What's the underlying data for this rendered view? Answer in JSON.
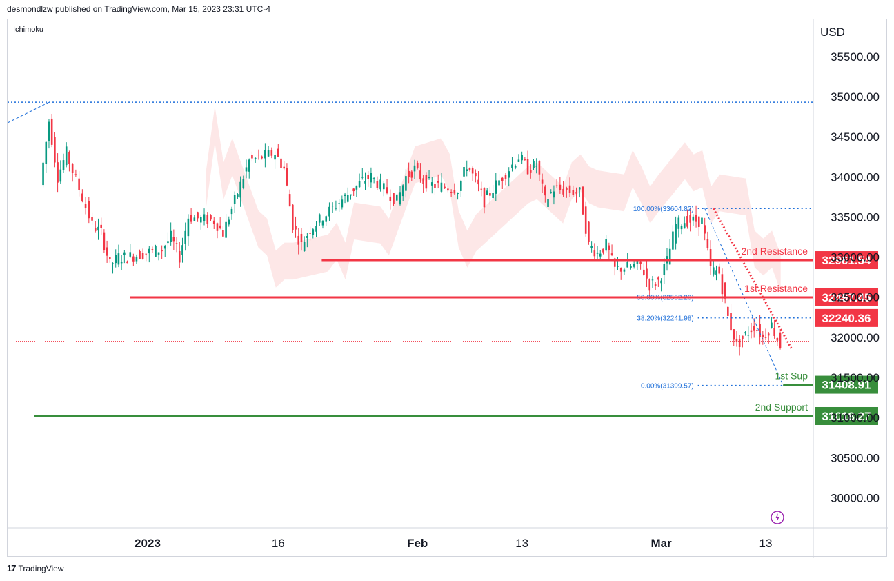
{
  "header": {
    "published": "desmondlzw published on TradingView.com, Mar 15, 2023 23:31 UTC-4"
  },
  "footer": {
    "brand": "TradingView",
    "logo_mark": "17"
  },
  "colors": {
    "up": "#089981",
    "down": "#f23645",
    "cloud_bear": "#fde3e3",
    "cloud_bull": "#e0f2e6",
    "resistance": "#f23645",
    "support": "#388e3c",
    "fib": "#1e6fd9",
    "last_price": "#f23645"
  },
  "chart_data": {
    "type": "candlestick",
    "indicator": "Ichimoku",
    "currency": "USD",
    "y_ticks": [
      30000,
      30500,
      31000,
      31500,
      32000,
      32500,
      33000,
      33500,
      34000,
      34500,
      35000,
      35500
    ],
    "y_tick_labels": [
      "30000.00",
      "30500.00",
      "31000.00",
      "31500.00",
      "32000.00",
      "32500.00",
      "33000.00",
      "33500.00",
      "34000.00",
      "34500.00",
      "35000.00",
      "35500.00"
    ],
    "ylim": [
      29600,
      35700
    ],
    "x_ticks": [
      {
        "label": "2023",
        "date": "2023-01-01",
        "bold": true
      },
      {
        "label": "16",
        "date": "2023-01-16",
        "bold": false
      },
      {
        "label": "Feb",
        "date": "2023-02-01",
        "bold": true
      },
      {
        "label": "13",
        "date": "2023-02-13",
        "bold": false
      },
      {
        "label": "Mar",
        "date": "2023-03-01",
        "bold": true
      },
      {
        "label": "13",
        "date": "2023-03-13",
        "bold": false
      }
    ],
    "price_path": [
      [
        "2022-12-20",
        33900
      ],
      [
        "2022-12-21",
        34700
      ],
      [
        "2022-12-22",
        34000
      ],
      [
        "2022-12-23",
        34300
      ],
      [
        "2022-12-26",
        33400
      ],
      [
        "2022-12-27",
        33300
      ],
      [
        "2022-12-28",
        32900
      ],
      [
        "2022-12-29",
        33000
      ],
      [
        "2022-12-30",
        33000
      ],
      [
        "2023-01-03",
        33100
      ],
      [
        "2023-01-04",
        33250
      ],
      [
        "2023-01-05",
        33000
      ],
      [
        "2023-01-06",
        33500
      ],
      [
        "2023-01-09",
        33450
      ],
      [
        "2023-01-10",
        33300
      ],
      [
        "2023-01-11",
        33600
      ],
      [
        "2023-01-12",
        33900
      ],
      [
        "2023-01-13",
        34200
      ],
      [
        "2023-01-16",
        34300
      ],
      [
        "2023-01-17",
        34100
      ],
      [
        "2023-01-18",
        33400
      ],
      [
        "2023-01-19",
        33150
      ],
      [
        "2023-01-20",
        33350
      ],
      [
        "2023-01-23",
        33650
      ],
      [
        "2023-01-24",
        33750
      ],
      [
        "2023-01-25",
        33850
      ],
      [
        "2023-01-26",
        33950
      ],
      [
        "2023-01-27",
        34000
      ],
      [
        "2023-01-30",
        33700
      ],
      [
        "2023-01-31",
        34000
      ],
      [
        "2023-02-01",
        34100
      ],
      [
        "2023-02-02",
        33950
      ],
      [
        "2023-02-03",
        33900
      ],
      [
        "2023-02-06",
        33850
      ],
      [
        "2023-02-07",
        34150
      ],
      [
        "2023-02-08",
        33950
      ],
      [
        "2023-02-09",
        33700
      ],
      [
        "2023-02-10",
        33850
      ],
      [
        "2023-02-13",
        34250
      ],
      [
        "2023-02-14",
        34100
      ],
      [
        "2023-02-15",
        34150
      ],
      [
        "2023-02-16",
        33700
      ],
      [
        "2023-02-17",
        33850
      ],
      [
        "2023-02-20",
        33800
      ],
      [
        "2023-02-21",
        33150
      ],
      [
        "2023-02-22",
        33050
      ],
      [
        "2023-02-23",
        33150
      ],
      [
        "2023-02-24",
        32850
      ],
      [
        "2023-02-27",
        32900
      ],
      [
        "2023-02-28",
        32650
      ],
      [
        "2023-03-01",
        32700
      ],
      [
        "2023-03-02",
        32950
      ],
      [
        "2023-03-03",
        33400
      ],
      [
        "2023-03-04",
        33450
      ],
      [
        "2023-03-06",
        33450
      ],
      [
        "2023-03-07",
        32850
      ],
      [
        "2023-03-08",
        32800
      ],
      [
        "2023-03-09",
        32250
      ],
      [
        "2023-03-10",
        31900
      ],
      [
        "2023-03-12",
        32150
      ],
      [
        "2023-03-13",
        32000
      ],
      [
        "2023-03-14",
        32150
      ],
      [
        "2023-03-15",
        31900
      ]
    ],
    "last_price_line": 31950,
    "top_dotted_line": 34930,
    "levels": [
      {
        "name": "2nd Resistance",
        "value": 32961.54,
        "label": "32961.54",
        "start": "2023-01-21",
        "kind": "resistance"
      },
      {
        "name": "1st Resistance",
        "value": 32497.45,
        "label": "32497.45",
        "start": "2022-12-30",
        "kind": "resistance"
      },
      {
        "name": "1st Sup",
        "value": 31408.91,
        "label": "31408.91",
        "start": "2023-03-15",
        "kind": "support"
      },
      {
        "name": "2nd Support",
        "value": 31018.27,
        "label": "31018.27",
        "start": "2022-12-19",
        "kind": "support"
      }
    ],
    "extra_price_label": {
      "value": 32240.36,
      "label": "32240.36"
    },
    "fibonacci": [
      {
        "text": "100.00%(33604.82)",
        "value": 33604.82
      },
      {
        "text": "50.00%(32502.20)",
        "value": 32502.2
      },
      {
        "text": "38.20%(32241.98)",
        "value": 32241.98
      },
      {
        "text": "0.00%(31399.57)",
        "value": 31399.57
      }
    ]
  }
}
